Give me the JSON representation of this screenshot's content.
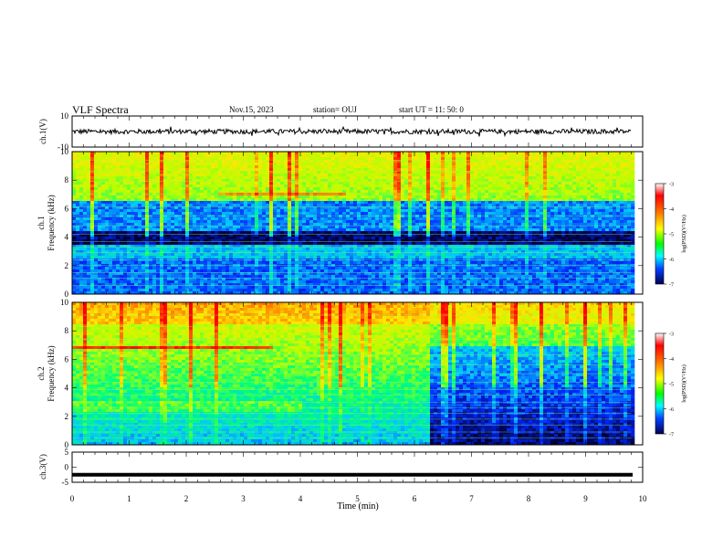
{
  "header": {
    "title": "VLF Spectra",
    "date": "Nov.15, 2023",
    "station": "station= OUJ",
    "start_ut": "start  UT =   11: 50: 0"
  },
  "colors": {
    "colorbar_stops": [
      "#ff0000",
      "#ff8000",
      "#ffff00",
      "#00ff00",
      "#00ffff",
      "#0080ff",
      "#0000ff",
      "#000030"
    ],
    "trace": "#000000"
  },
  "chart_data": [
    {
      "type": "line",
      "id": "ch1-waveform",
      "ylabel": "ch.1(V)",
      "ylim": [
        -10,
        10
      ],
      "yticks": [
        10,
        -10
      ],
      "x_range_min": [
        0,
        9.8
      ],
      "approx_mean": 0,
      "approx_amplitude": 1.5
    },
    {
      "type": "heatmap",
      "id": "ch1-spectrogram",
      "ylabel_line1": "ch.1",
      "ylabel_line2": "Frequency (kHz)",
      "ylim": [
        0,
        10
      ],
      "yticks": [
        0,
        2,
        4,
        6,
        8,
        10
      ],
      "x_range_min": [
        0,
        9.8
      ],
      "colorbar": {
        "label": "log(PSD)(V²/Hz)",
        "range": [
          -7,
          -3
        ],
        "ticks": [
          "-3",
          "-4",
          "-5",
          "-6",
          "-7"
        ]
      },
      "dominant_levels": [
        {
          "freq_khz": [
            6.5,
            10
          ],
          "log_psd": -5.0
        },
        {
          "freq_khz": [
            4.5,
            6.5
          ],
          "log_psd": -6.2
        },
        {
          "freq_khz": [
            3.5,
            4.5
          ],
          "log_psd": -6.8
        },
        {
          "freq_khz": [
            2.5,
            3.5
          ],
          "log_psd": -6.0
        },
        {
          "freq_khz": [
            0,
            2.5
          ],
          "log_psd": -6.3
        }
      ]
    },
    {
      "type": "heatmap",
      "id": "ch2-spectrogram",
      "ylabel_line1": "ch.2",
      "ylabel_line2": "Frequency (kHz)",
      "ylim": [
        0,
        10
      ],
      "yticks": [
        0,
        2,
        4,
        6,
        8,
        10
      ],
      "x_range_min": [
        0,
        9.8
      ],
      "colorbar": {
        "label": "log(PSD)(V²/Hz)",
        "range": [
          -7,
          -3
        ],
        "ticks": [
          "-3",
          "-4",
          "-5",
          "-6",
          "-7"
        ]
      },
      "intensity_drop_at_min": 6.25,
      "line_feature": {
        "freq_khz": 6.8,
        "x_end_min": 3.5
      }
    },
    {
      "type": "line",
      "id": "ch3-waveform",
      "ylabel": "ch.3(V)",
      "ylim": [
        -5,
        5
      ],
      "yticks": [
        5,
        0,
        -5
      ],
      "constant_value": -2.5
    }
  ],
  "xaxis": {
    "label": "Time (min)",
    "range": [
      0,
      10
    ],
    "ticks": [
      "0",
      "1",
      "2",
      "3",
      "4",
      "5",
      "6",
      "7",
      "8",
      "9",
      "10"
    ]
  }
}
